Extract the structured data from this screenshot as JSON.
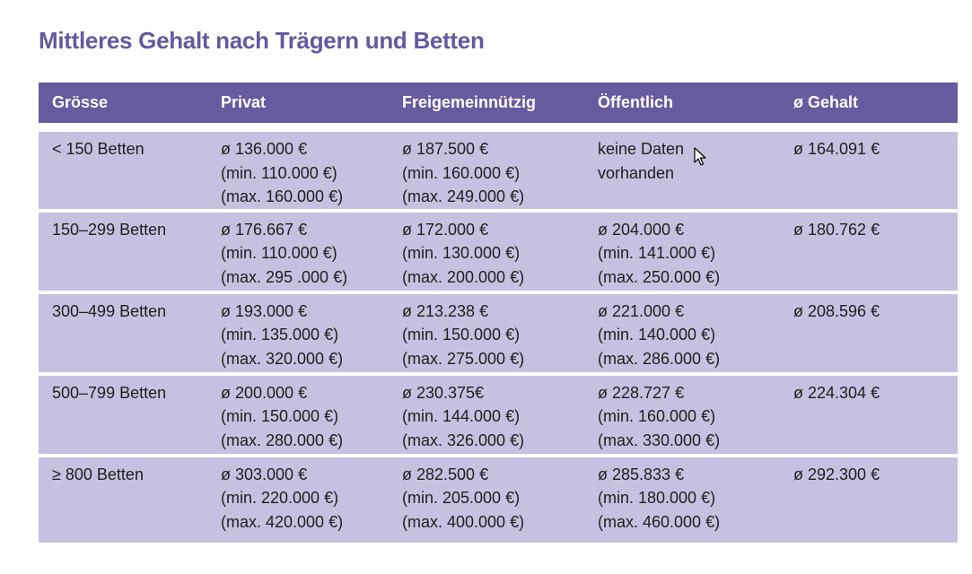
{
  "title": "Mittleres Gehalt nach Trägern und Betten",
  "headers": {
    "size": "Grösse",
    "private": "Privat",
    "nonprofit": "Freigemeinnützig",
    "public": "Öffentlich",
    "avg": "ø Gehalt"
  },
  "rows": [
    {
      "size": "< 150 Betten",
      "private": [
        "ø 136.000 €",
        "(min. 110.000 €)",
        "(max. 160.000 €)"
      ],
      "nonprofit": [
        "ø 187.500 €",
        "(min. 160.000 €)",
        "(max. 249.000 €)"
      ],
      "public": [
        "keine Daten",
        "vorhanden",
        ""
      ],
      "avg": "ø 164.091 €"
    },
    {
      "size": "150–299 Betten",
      "private": [
        "ø 176.667 €",
        "(min. 110.000 €)",
        "(max. 295 .000 €)"
      ],
      "nonprofit": [
        "ø 172.000 €",
        "(min. 130.000 €)",
        "(max. 200.000 €)"
      ],
      "public": [
        "ø 204.000 €",
        "(min. 141.000 €)",
        "(max. 250.000 €)"
      ],
      "avg": "ø 180.762 €"
    },
    {
      "size": "300–499 Betten",
      "private": [
        "ø 193.000 €",
        "(min. 135.000 €)",
        "(max. 320.000 €)"
      ],
      "nonprofit": [
        "ø 213.238 €",
        "(min. 150.000 €)",
        "(max. 275.000 €)"
      ],
      "public": [
        "ø 221.000 €",
        "(min. 140.000 €)",
        "(max. 286.000 €)"
      ],
      "avg": "ø 208.596 €"
    },
    {
      "size": "500–799 Betten",
      "private": [
        "ø 200.000 €",
        "(min. 150.000 €)",
        "(max. 280.000 €)"
      ],
      "nonprofit": [
        "ø 230.375€",
        "(min. 144.000 €)",
        "(max. 326.000 €)"
      ],
      "public": [
        "ø 228.727 €",
        "(min. 160.000 €)",
        "(max. 330.000 €)"
      ],
      "avg": "ø 224.304 €"
    },
    {
      "size": "≥ 800 Betten",
      "private": [
        "ø 303.000 €",
        "(min. 220.000 €)",
        "(max. 420.000 €)"
      ],
      "nonprofit": [
        "ø 282.500 €",
        "(min. 205.000 €)",
        "(max. 400.000 €)"
      ],
      "public": [
        "ø 285.833 €",
        "(min. 180.000 €)",
        "(max. 460.000 €)"
      ],
      "avg": "ø 292.300 €"
    }
  ],
  "colors": {
    "title": "#65599f",
    "header_bg": "#675a9e",
    "row_bg": "#c5c1e0"
  }
}
